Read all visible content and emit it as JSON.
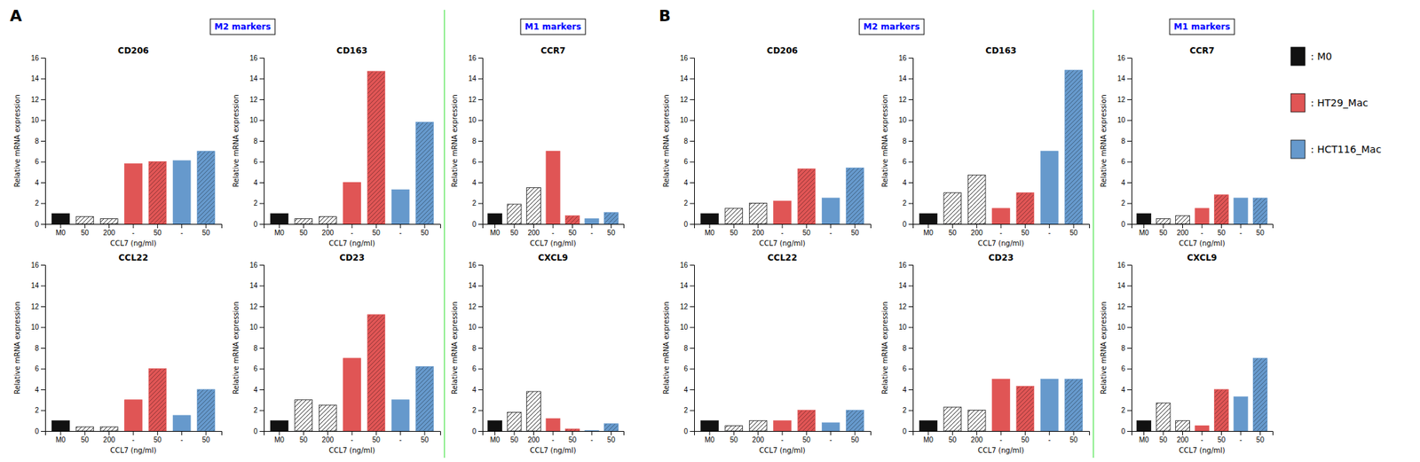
{
  "chart_data": [
    {
      "type": "bar",
      "title": "CD206",
      "categories": [
        "M0",
        "50",
        "200",
        "-",
        "50",
        "-",
        "50"
      ],
      "values": [
        1.0,
        0.7,
        0.5,
        5.8,
        6.0,
        6.1,
        7.0
      ],
      "colors": [
        "#111111",
        "white",
        "white",
        "#E05555",
        "#E05555",
        "#6699CC",
        "#6699CC"
      ],
      "xlabel": "CCL7 (ng/ml)",
      "ylabel": "Relative mRNA expression",
      "ylim": [
        0,
        16
      ],
      "yticks": [
        0,
        2,
        4,
        6,
        8,
        10,
        12,
        14,
        16
      ],
      "grid": false
    },
    {
      "type": "bar",
      "title": "CD163",
      "categories": [
        "M0",
        "50",
        "200",
        "-",
        "50",
        "-",
        "50"
      ],
      "values": [
        1.0,
        0.5,
        0.7,
        4.0,
        14.7,
        3.3,
        9.8
      ],
      "colors": [
        "#111111",
        "white",
        "white",
        "#E05555",
        "#E05555",
        "#6699CC",
        "#6699CC"
      ],
      "xlabel": "CCL7 (ng/ml)",
      "ylabel": "Relative mRNA expression",
      "ylim": [
        0,
        16
      ],
      "yticks": [
        0,
        2,
        4,
        6,
        8,
        10,
        12,
        14,
        16
      ],
      "grid": false
    },
    {
      "type": "bar",
      "title": "CCR7",
      "categories": [
        "M0",
        "50",
        "200",
        "-",
        "50",
        "-",
        "50"
      ],
      "values": [
        1.0,
        1.9,
        3.5,
        7.0,
        0.8,
        0.5,
        1.1
      ],
      "colors": [
        "#111111",
        "white",
        "white",
        "#E05555",
        "#E05555",
        "#6699CC",
        "#6699CC"
      ],
      "xlabel": "CCL7 (ng/ml)",
      "ylabel": "Relative mRNA expression",
      "ylim": [
        0,
        16
      ],
      "yticks": [
        0,
        2,
        4,
        6,
        8,
        10,
        12,
        14,
        16
      ],
      "grid": false
    },
    {
      "type": "bar",
      "title": "CCL22",
      "categories": [
        "M0",
        "50",
        "200",
        "-",
        "50",
        "-",
        "50"
      ],
      "values": [
        1.0,
        0.4,
        0.4,
        3.0,
        6.0,
        1.5,
        4.0
      ],
      "colors": [
        "#111111",
        "white",
        "white",
        "#E05555",
        "#E05555",
        "#6699CC",
        "#6699CC"
      ],
      "xlabel": "CCL7 (ng/ml)",
      "ylabel": "Relative mRNA expression",
      "ylim": [
        0,
        16
      ],
      "yticks": [
        0,
        2,
        4,
        6,
        8,
        10,
        12,
        14,
        16
      ],
      "grid": false
    },
    {
      "type": "bar",
      "title": "CD23",
      "categories": [
        "M0",
        "50",
        "200",
        "-",
        "50",
        "-",
        "50"
      ],
      "values": [
        1.0,
        3.0,
        2.5,
        7.0,
        11.2,
        3.0,
        6.2
      ],
      "colors": [
        "#111111",
        "white",
        "white",
        "#E05555",
        "#E05555",
        "#6699CC",
        "#6699CC"
      ],
      "xlabel": "CCL7 (ng/ml)",
      "ylabel": "Relative mRNA expression",
      "ylim": [
        0,
        16
      ],
      "yticks": [
        0,
        2,
        4,
        6,
        8,
        10,
        12,
        14,
        16
      ],
      "grid": false
    },
    {
      "type": "bar",
      "title": "CXCL9",
      "categories": [
        "M0",
        "50",
        "200",
        "-",
        "50",
        "-",
        "50"
      ],
      "values": [
        1.0,
        1.8,
        3.8,
        1.2,
        0.2,
        0.05,
        0.7
      ],
      "colors": [
        "#111111",
        "white",
        "white",
        "#E05555",
        "#E05555",
        "#6699CC",
        "#6699CC"
      ],
      "xlabel": "CCL7 (ng/ml)",
      "ylabel": "Relative mRNA expression",
      "ylim": [
        0,
        16
      ],
      "yticks": [
        0,
        2,
        4,
        6,
        8,
        10,
        12,
        14,
        16
      ],
      "grid": false
    },
    {
      "type": "bar",
      "title": "CD206",
      "categories": [
        "M0",
        "50",
        "200",
        "-",
        "50",
        "-",
        "50"
      ],
      "values": [
        1.0,
        1.5,
        2.0,
        2.2,
        5.3,
        2.5,
        5.4
      ],
      "colors": [
        "#111111",
        "white",
        "white",
        "#E05555",
        "#E05555",
        "#6699CC",
        "#6699CC"
      ],
      "xlabel": "CCL7 (ng/ml)",
      "ylabel": "Relative mRNA expression",
      "ylim": [
        0,
        16
      ],
      "yticks": [
        0,
        2,
        4,
        6,
        8,
        10,
        12,
        14,
        16
      ],
      "grid": false
    },
    {
      "type": "bar",
      "title": "CD163",
      "categories": [
        "M0",
        "50",
        "200",
        "-",
        "50",
        "-",
        "50"
      ],
      "values": [
        1.0,
        3.0,
        4.7,
        1.5,
        3.0,
        7.0,
        14.8
      ],
      "colors": [
        "#111111",
        "white",
        "white",
        "#E05555",
        "#E05555",
        "#6699CC",
        "#6699CC"
      ],
      "xlabel": "CCL7 (ng/ml)",
      "ylabel": "Relative mRNA expression",
      "ylim": [
        0,
        16
      ],
      "yticks": [
        0,
        2,
        4,
        6,
        8,
        10,
        12,
        14,
        16
      ],
      "grid": false
    },
    {
      "type": "bar",
      "title": "CCR7",
      "categories": [
        "M0",
        "50",
        "200",
        "-",
        "50",
        "-",
        "50"
      ],
      "values": [
        1.0,
        0.5,
        0.8,
        1.5,
        2.8,
        2.5,
        2.5
      ],
      "colors": [
        "#111111",
        "white",
        "white",
        "#E05555",
        "#E05555",
        "#6699CC",
        "#6699CC"
      ],
      "xlabel": "CCL7 (ng/ml)",
      "ylabel": "Relative mRNA expression",
      "ylim": [
        0,
        16
      ],
      "yticks": [
        0,
        2,
        4,
        6,
        8,
        10,
        12,
        14,
        16
      ],
      "grid": false
    },
    {
      "type": "bar",
      "title": "CCL22",
      "categories": [
        "M0",
        "50",
        "200",
        "-",
        "50",
        "-",
        "50"
      ],
      "values": [
        1.0,
        0.5,
        1.0,
        1.0,
        2.0,
        0.8,
        2.0
      ],
      "colors": [
        "#111111",
        "white",
        "white",
        "#E05555",
        "#E05555",
        "#6699CC",
        "#6699CC"
      ],
      "xlabel": "CCL7 (ng/ml)",
      "ylabel": "Relative mRNA expression",
      "ylim": [
        0,
        16
      ],
      "yticks": [
        0,
        2,
        4,
        6,
        8,
        10,
        12,
        14,
        16
      ],
      "grid": false
    },
    {
      "type": "bar",
      "title": "CD23",
      "categories": [
        "M0",
        "50",
        "200",
        "-",
        "50",
        "-",
        "50"
      ],
      "values": [
        1.0,
        2.3,
        2.0,
        5.0,
        4.3,
        5.0,
        5.0
      ],
      "colors": [
        "#111111",
        "white",
        "white",
        "#E05555",
        "#E05555",
        "#6699CC",
        "#6699CC"
      ],
      "xlabel": "CCL7 (ng/ml)",
      "ylabel": "Relative mRNA expression",
      "ylim": [
        0,
        16
      ],
      "yticks": [
        0,
        2,
        4,
        6,
        8,
        10,
        12,
        14,
        16
      ],
      "grid": false
    },
    {
      "type": "bar",
      "title": "CXCL9",
      "categories": [
        "M0",
        "50",
        "200",
        "-",
        "50",
        "-",
        "50"
      ],
      "values": [
        1.0,
        2.7,
        1.0,
        0.5,
        4.0,
        3.3,
        7.0
      ],
      "colors": [
        "#111111",
        "white",
        "white",
        "#E05555",
        "#E05555",
        "#6699CC",
        "#6699CC"
      ],
      "xlabel": "CCL7 (ng/ml)",
      "ylabel": "Relative mRNA expression",
      "ylim": [
        0,
        16
      ],
      "yticks": [
        0,
        2,
        4,
        6,
        8,
        10,
        12,
        14,
        16
      ],
      "grid": false
    }
  ],
  "annotations": [
    "A",
    "M2 markers",
    "M1 markers",
    "B",
    "M2 markers",
    "M1 markers"
  ],
  "legend": "upper right",
  "legend_entries": [
    {
      "name": ": M0",
      "color": "#111111"
    },
    {
      "name": ": HT29_Mac",
      "color": "#E05555"
    },
    {
      "name": ": HCT116_Mac",
      "color": "#6699CC"
    }
  ]
}
